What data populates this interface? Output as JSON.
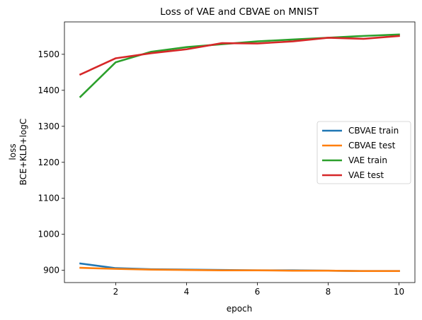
{
  "chart_data": {
    "type": "line",
    "title": "Loss of VAE and CBVAE on MNIST",
    "xlabel": "epoch",
    "ylabel_lines": [
      "loss",
      "BCE+KLD+logC"
    ],
    "xlim": [
      0.55,
      10.45
    ],
    "ylim": [
      866,
      1590
    ],
    "xticks": [
      2,
      4,
      6,
      8,
      10
    ],
    "yticks": [
      900,
      1000,
      1100,
      1200,
      1300,
      1400,
      1500
    ],
    "grid": false,
    "legend_position": "center-right",
    "x": [
      1,
      2,
      3,
      4,
      5,
      6,
      7,
      8,
      9,
      10
    ],
    "series": [
      {
        "name": "CBVAE train",
        "color": "#1f77b4",
        "values": [
          919,
          906,
          903,
          902,
          901,
          900,
          900,
          899,
          898,
          898
        ]
      },
      {
        "name": "CBVAE test",
        "color": "#ff7f0e",
        "values": [
          907,
          904,
          902,
          901,
          900,
          900,
          899,
          899,
          898,
          898
        ]
      },
      {
        "name": "VAE train",
        "color": "#2ca02c",
        "values": [
          1382,
          1478,
          1507,
          1520,
          1528,
          1536,
          1541,
          1546,
          1551,
          1555
        ]
      },
      {
        "name": "VAE test",
        "color": "#d62728",
        "values": [
          1444,
          1489,
          1503,
          1514,
          1531,
          1530,
          1536,
          1546,
          1543,
          1551
        ]
      }
    ]
  }
}
